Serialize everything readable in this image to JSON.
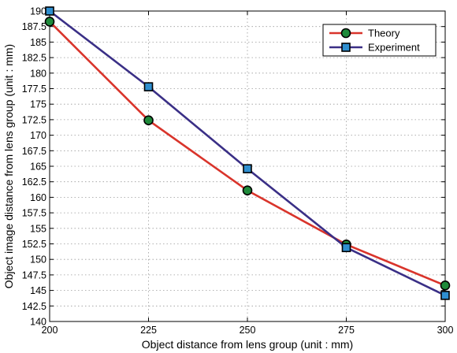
{
  "chart_data": {
    "type": "line",
    "xlabel": "Object distance from lens group (unit : mm)",
    "ylabel": "Object image distance from lens group (unit : mm)",
    "xlim": [
      200,
      300
    ],
    "ylim": [
      140,
      190
    ],
    "x_ticks": [
      "200",
      "225",
      "250",
      "275",
      "300"
    ],
    "y_ticks": [
      "140",
      "142.5",
      "145",
      "147.5",
      "150",
      "152.5",
      "155",
      "157.5",
      "160",
      "162.5",
      "165",
      "167.5",
      "170",
      "172.5",
      "175",
      "177.5",
      "180",
      "182.5",
      "185",
      "187.5",
      "190"
    ],
    "grid": true,
    "legend_position": "top-right",
    "x": [
      200,
      225,
      250,
      275,
      300
    ],
    "series": [
      {
        "name": "Theory",
        "values": [
          188.3,
          172.4,
          161.1,
          152.4,
          145.8
        ],
        "line_color": "#d9342b",
        "marker": "circle",
        "marker_color": "#1f8a3a"
      },
      {
        "name": "Experiment",
        "values": [
          190.0,
          177.8,
          164.6,
          151.9,
          144.2
        ],
        "line_color": "#3a2f86",
        "marker": "square",
        "marker_color": "#2f8fd0"
      }
    ]
  }
}
